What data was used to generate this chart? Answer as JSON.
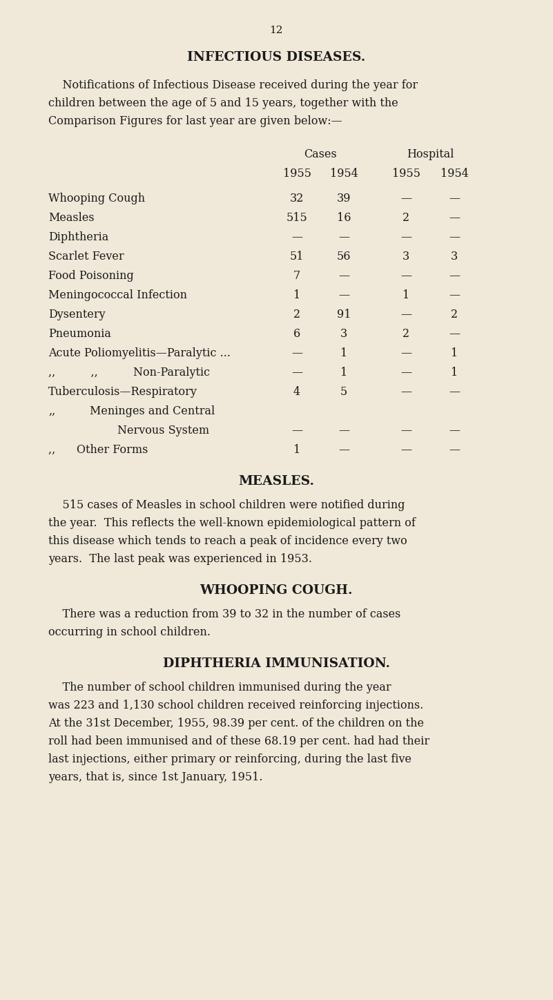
{
  "page_number": "12",
  "bg_color": "#f0e8d8",
  "text_color": "#1a1a1a",
  "title": "INFECTIOUS DISEASES.",
  "intro_lines": [
    "    Notifications of Infectious Disease received during the year for",
    "children between the age of 5 and 15 years, together with the",
    "Comparison Figures for last year are given below:—"
  ],
  "table_rows": [
    {
      "label": "Whooping Cough",
      "dots": "...          ...",
      "c1955": "32",
      "c1954": "39",
      "h1955": "—",
      "h1954": "—"
    },
    {
      "label": "Measles",
      "dots": "...          ...          ...",
      "c1955": "515",
      "c1954": "16",
      "h1955": "2",
      "h1954": "—"
    },
    {
      "label": "Diphtheria",
      "dots": "...          ...          ...",
      "c1955": "—",
      "c1954": "—",
      "h1955": "—",
      "h1954": "—"
    },
    {
      "label": "Scarlet Fever",
      "dots": "...          ...",
      "c1955": "51",
      "c1954": "56",
      "h1955": "3",
      "h1954": "3"
    },
    {
      "label": "Food Poisoning",
      "dots": "...          ...",
      "c1955": "7",
      "c1954": "—",
      "h1955": "—",
      "h1954": "—"
    },
    {
      "label": "Meningococcal Infection",
      "dots": "...",
      "c1955": "1",
      "c1954": "—",
      "h1955": "1",
      "h1954": "—"
    },
    {
      "label": "Dysentery",
      "dots": "...          ...          ...",
      "c1955": "2",
      "c1954": "91",
      "h1955": "—",
      "h1954": "2"
    },
    {
      "label": "Pneumonia",
      "dots": "...          ...          ...",
      "c1955": "6",
      "c1954": "3",
      "h1955": "2",
      "h1954": "—"
    },
    {
      "label": "Acute Poliomyelitis—Paralytic ...",
      "dots": "",
      "c1955": "—",
      "c1954": "1",
      "h1955": "—",
      "h1954": "1",
      "single_line": true
    },
    {
      "label": ",,          ,,          Non-Paralytic",
      "dots": "",
      "c1955": "—",
      "c1954": "1",
      "h1955": "—",
      "h1954": "1",
      "single_line": true
    },
    {
      "label": "Tuberculosis—Respiratory",
      "dots": "...",
      "c1955": "4",
      "c1954": "5",
      "h1955": "—",
      "h1954": "—"
    },
    {
      "label": ",,",
      "label2": "Meninges and Central",
      "label3": "Nervous System",
      "dots": "",
      "c1955": "—",
      "c1954": "—",
      "h1955": "—",
      "h1954": "—",
      "two_line": true
    },
    {
      "label": ",,      Other Forms",
      "dots": "...",
      "c1955": "1",
      "c1954": "—",
      "h1955": "—",
      "h1954": "—"
    }
  ],
  "section_measles_title": "MEASLES.",
  "measles_lines": [
    "    515 cases of Measles in school children were notified during",
    "the year.  This reflects the well-known epidemiological pattern of",
    "this disease which tends to reach a peak of incidence every two",
    "years.  The last peak was experienced in 1953."
  ],
  "section_whooping_title": "WHOOPING COUGH.",
  "whooping_lines": [
    "    There was a reduction from 39 to 32 in the number of cases",
    "occurring in school children."
  ],
  "section_diphtheria_title": "DIPHTHERIA IMMUNISATION.",
  "diphtheria_lines": [
    "    The number of school children immunised during the year",
    "was 223 and 1,130 school children received reinforcing injections.",
    "At the 31st December, 1955, 98.39 per cent. of the children on the",
    "roll had been immunised and of these 68.19 per cent. had had their",
    "last injections, either primary or reinforcing, during the last five",
    "years, that is, since 1st January, 1951."
  ]
}
